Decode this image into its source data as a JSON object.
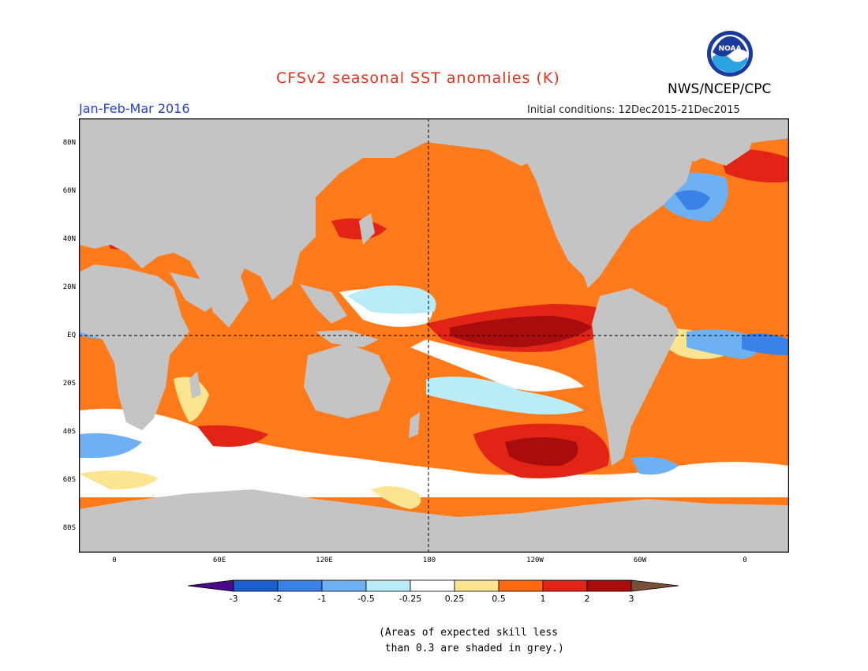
{
  "title": "CFSv2 seasonal SST anomalies (K)",
  "agency": "NWS/NCEP/CPC",
  "logo_text": "NOAA",
  "period": "Jan-Feb-Mar 2016",
  "initial_conditions": "Initial conditions: 12Dec2015-21Dec2015",
  "lat_labels": [
    "80N",
    "60N",
    "40N",
    "20N",
    "EQ",
    "20S",
    "40S",
    "60S",
    "80S"
  ],
  "lon_labels": [
    "0",
    "60E",
    "120E",
    "180",
    "120W",
    "60W",
    "0"
  ],
  "colorbar": {
    "labels": [
      "-3",
      "-2",
      "-1",
      "-0.5",
      "-0.25",
      "0.25",
      "0.5",
      "1",
      "2",
      "3"
    ],
    "colors": [
      "#4a0a8c",
      "#1b5fcf",
      "#3a82e8",
      "#6eb1f2",
      "#b9ecf6",
      "#ffffff",
      "#fde490",
      "#ff6a10",
      "#e22416",
      "#a80c0c",
      "#7a4f3a"
    ]
  },
  "note": "(Areas of expected skill less\n than 0.3 are shaded in grey.)",
  "colors": {
    "land": "#c4c4c4",
    "ocean": "#ff7a1a",
    "strong_warm": "#a80c0c",
    "warm": "#e22416",
    "cool": "#6eb1f2",
    "cold": "#3a82e8",
    "title": "#e8301c",
    "period": "#2340d0"
  }
}
